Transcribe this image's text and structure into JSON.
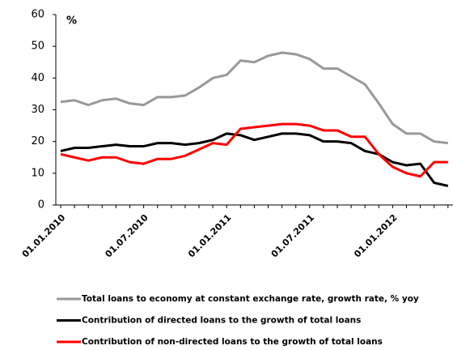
{
  "chart_data": {
    "type": "line",
    "y_unit": "%",
    "categories": [
      "01.01.2010",
      null,
      null,
      null,
      null,
      null,
      "01.07.2010",
      null,
      null,
      null,
      null,
      null,
      "01.01.2011",
      null,
      null,
      null,
      null,
      null,
      "01.07.2011",
      null,
      null,
      null,
      null,
      null,
      "01.01.2012",
      null,
      null,
      null,
      null
    ],
    "series": [
      {
        "name": "Total loans to economy at constant exchange rate, growth rate, % yoy",
        "color": "#999999",
        "values": [
          32.5,
          33,
          31.5,
          33,
          33.5,
          32,
          31.5,
          34,
          34,
          34.5,
          37,
          40,
          41,
          45.5,
          45,
          47,
          48,
          47.5,
          46,
          43,
          43,
          40.5,
          38,
          32,
          25.5,
          22.5,
          22.5,
          20,
          19.5
        ]
      },
      {
        "name": "Contribution of directed loans to the growth of total loans",
        "color": "#000000",
        "values": [
          17,
          18,
          18,
          18.5,
          19,
          18.5,
          18.5,
          19.5,
          19.5,
          19,
          19.5,
          20.5,
          22.5,
          22,
          20.5,
          21.5,
          22.5,
          22.5,
          22,
          20,
          20,
          19.5,
          17,
          16,
          13.5,
          12.5,
          13,
          7,
          6
        ]
      },
      {
        "name": "Contribution of non-directed loans to the growth of total loans",
        "color": "#ff0000",
        "values": [
          16,
          15,
          14,
          15,
          15,
          13.5,
          13,
          14.5,
          14.5,
          15.5,
          17.5,
          19.5,
          19,
          24,
          24.5,
          25,
          25.5,
          25.5,
          25,
          23.5,
          23.5,
          21.5,
          21.5,
          16,
          12,
          10,
          9,
          13.5,
          13.5
        ]
      }
    ],
    "ylim": [
      0,
      60
    ],
    "yticks": [
      0,
      10,
      20,
      30,
      40,
      50,
      60
    ]
  }
}
